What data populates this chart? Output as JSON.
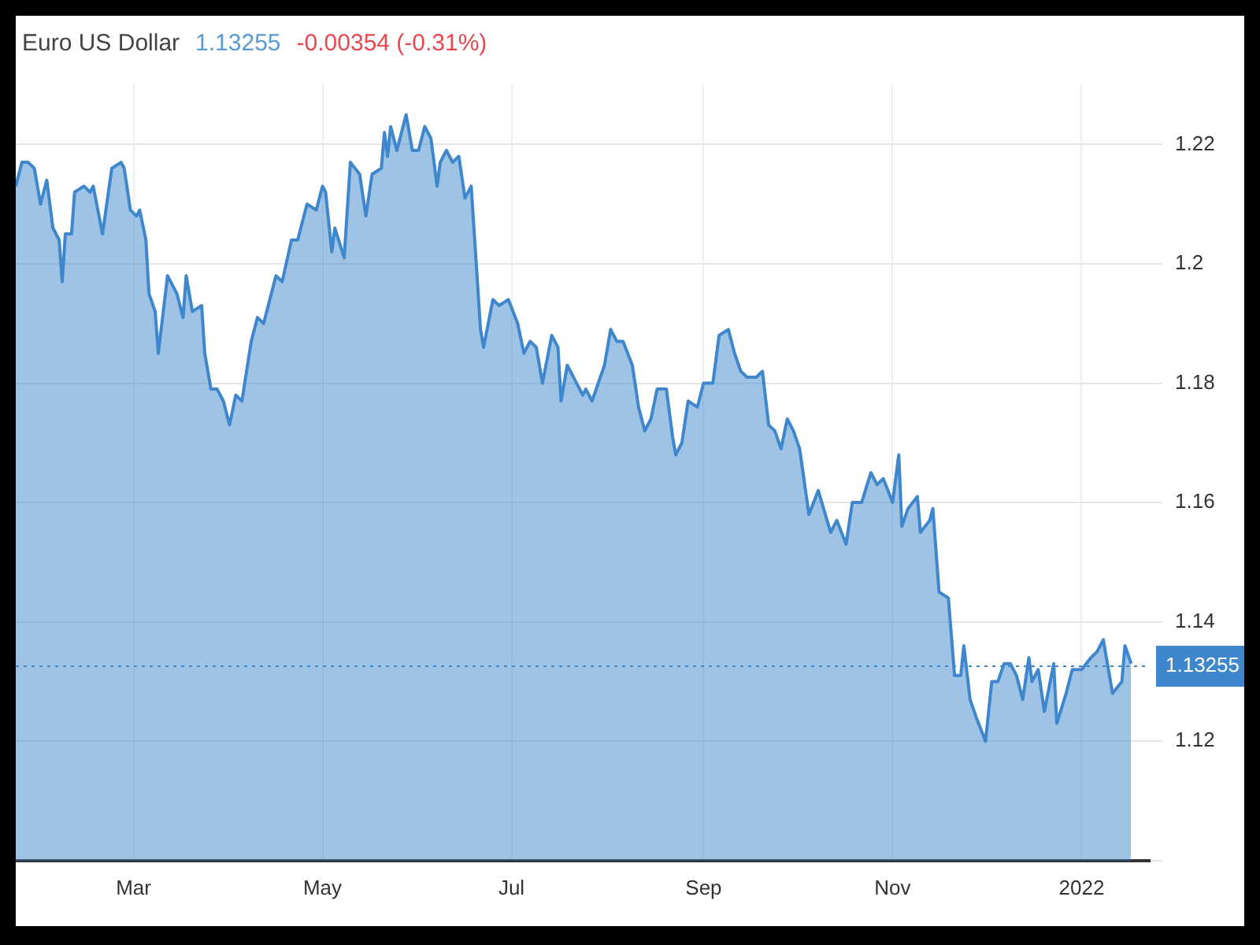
{
  "chart_data": {
    "type": "area",
    "title": "Euro US Dollar",
    "annotations": [
      "1.13255",
      "-0.00354 (-0.31%)"
    ],
    "x": [
      "2021-01-22",
      "2021-01-24",
      "2021-01-26",
      "2021-01-28",
      "2021-01-30",
      "2021-02-01",
      "2021-02-03",
      "2021-02-05",
      "2021-02-06",
      "2021-02-07",
      "2021-02-09",
      "2021-02-10",
      "2021-02-13",
      "2021-02-15",
      "2021-02-16",
      "2021-02-19",
      "2021-02-22",
      "2021-02-25",
      "2021-02-26",
      "2021-02-28",
      "2021-03-02",
      "2021-03-03",
      "2021-03-05",
      "2021-03-06",
      "2021-03-08",
      "2021-03-09",
      "2021-03-12",
      "2021-03-15",
      "2021-03-17",
      "2021-03-18",
      "2021-03-20",
      "2021-03-23",
      "2021-03-24",
      "2021-03-26",
      "2021-03-28",
      "2021-03-30",
      "2021-04-01",
      "2021-04-03",
      "2021-04-05",
      "2021-04-08",
      "2021-04-10",
      "2021-04-12",
      "2021-04-16",
      "2021-04-18",
      "2021-04-21",
      "2021-04-23",
      "2021-04-26",
      "2021-04-29",
      "2021-05-01",
      "2021-05-02",
      "2021-05-04",
      "2021-05-05",
      "2021-05-08",
      "2021-05-10",
      "2021-05-13",
      "2021-05-15",
      "2021-05-17",
      "2021-05-20",
      "2021-05-21",
      "2021-05-22",
      "2021-05-23",
      "2021-05-25",
      "2021-05-28",
      "2021-05-30",
      "2021-06-01",
      "2021-06-03",
      "2021-06-05",
      "2021-06-07",
      "2021-06-08",
      "2021-06-10",
      "2021-06-12",
      "2021-06-14",
      "2021-06-16",
      "2021-06-18",
      "2021-06-21",
      "2021-06-22",
      "2021-06-25",
      "2021-06-27",
      "2021-06-30",
      "2021-07-03",
      "2021-07-05",
      "2021-07-07",
      "2021-07-09",
      "2021-07-11",
      "2021-07-14",
      "2021-07-16",
      "2021-07-17",
      "2021-07-19",
      "2021-07-21",
      "2021-07-24",
      "2021-07-25",
      "2021-07-27",
      "2021-07-31",
      "2021-08-02",
      "2021-08-04",
      "2021-08-06",
      "2021-08-09",
      "2021-08-11",
      "2021-08-13",
      "2021-08-15",
      "2021-08-17",
      "2021-08-20",
      "2021-08-22",
      "2021-08-23",
      "2021-08-25",
      "2021-08-27",
      "2021-08-30",
      "2021-09-01",
      "2021-09-04",
      "2021-09-06",
      "2021-09-09",
      "2021-09-11",
      "2021-09-13",
      "2021-09-15",
      "2021-09-18",
      "2021-09-20",
      "2021-09-22",
      "2021-09-24",
      "2021-09-26",
      "2021-09-28",
      "2021-09-30",
      "2021-10-02",
      "2021-10-05",
      "2021-10-08",
      "2021-10-12",
      "2021-10-14",
      "2021-10-17",
      "2021-10-19",
      "2021-10-22",
      "2021-10-25",
      "2021-10-27",
      "2021-10-29",
      "2021-11-01",
      "2021-11-03",
      "2021-11-04",
      "2021-11-06",
      "2021-11-09",
      "2021-11-10",
      "2021-11-13",
      "2021-11-14",
      "2021-11-16",
      "2021-11-19",
      "2021-11-21",
      "2021-11-23",
      "2021-11-24",
      "2021-11-26",
      "2021-11-28",
      "2021-12-01",
      "2021-12-03",
      "2021-12-05",
      "2021-12-07",
      "2021-12-09",
      "2021-12-11",
      "2021-12-13",
      "2021-12-15",
      "2021-12-16",
      "2021-12-18",
      "2021-12-20",
      "2021-12-23",
      "2021-12-24",
      "2021-12-27",
      "2021-12-29",
      "2022-01-01",
      "2022-01-04",
      "2022-01-06",
      "2022-01-08",
      "2022-01-09",
      "2022-01-11",
      "2022-01-14",
      "2022-01-15",
      "2022-01-17"
    ],
    "series": [
      {
        "color": "#3f87cc",
        "values": [
          1.213,
          1.217,
          1.217,
          1.216,
          1.21,
          1.214,
          1.206,
          1.204,
          1.197,
          1.205,
          1.205,
          1.212,
          1.213,
          1.212,
          1.213,
          1.205,
          1.216,
          1.217,
          1.216,
          1.209,
          1.208,
          1.209,
          1.204,
          1.195,
          1.192,
          1.185,
          1.198,
          1.195,
          1.191,
          1.198,
          1.192,
          1.193,
          1.185,
          1.179,
          1.179,
          1.177,
          1.173,
          1.178,
          1.177,
          1.187,
          1.191,
          1.19,
          1.198,
          1.197,
          1.204,
          1.204,
          1.21,
          1.209,
          1.213,
          1.212,
          1.202,
          1.206,
          1.201,
          1.217,
          1.215,
          1.208,
          1.215,
          1.216,
          1.222,
          1.218,
          1.223,
          1.219,
          1.225,
          1.219,
          1.219,
          1.223,
          1.221,
          1.213,
          1.217,
          1.219,
          1.217,
          1.218,
          1.211,
          1.213,
          1.189,
          1.186,
          1.194,
          1.193,
          1.194,
          1.19,
          1.185,
          1.187,
          1.186,
          1.18,
          1.188,
          1.186,
          1.177,
          1.183,
          1.181,
          1.178,
          1.179,
          1.177,
          1.183,
          1.189,
          1.187,
          1.187,
          1.183,
          1.176,
          1.172,
          1.174,
          1.179,
          1.179,
          1.171,
          1.168,
          1.17,
          1.177,
          1.176,
          1.18,
          1.18,
          1.188,
          1.189,
          1.185,
          1.182,
          1.181,
          1.181,
          1.182,
          1.173,
          1.172,
          1.169,
          1.174,
          1.172,
          1.169,
          1.158,
          1.162,
          1.155,
          1.157,
          1.153,
          1.16,
          1.16,
          1.165,
          1.163,
          1.164,
          1.16,
          1.168,
          1.156,
          1.159,
          1.161,
          1.155,
          1.157,
          1.159,
          1.145,
          1.144,
          1.131,
          1.131,
          1.136,
          1.127,
          1.124,
          1.12,
          1.13,
          1.13,
          1.133,
          1.133,
          1.131,
          1.127,
          1.134,
          1.13,
          1.132,
          1.125,
          1.133,
          1.123,
          1.128,
          1.132,
          1.132,
          1.134,
          1.135,
          1.137,
          1.134,
          1.128,
          1.13,
          1.136,
          1.133
        ]
      }
    ],
    "xlim": [
      "2021-01-22",
      "2022-01-23"
    ],
    "xticks": [
      {
        "value": "2021-03-01",
        "label": "Mar"
      },
      {
        "value": "2021-05-01",
        "label": "May"
      },
      {
        "value": "2021-07-01",
        "label": "Jul"
      },
      {
        "value": "2021-09-01",
        "label": "Sep"
      },
      {
        "value": "2021-11-01",
        "label": "Nov"
      },
      {
        "value": "2022-01-01",
        "label": "2022"
      }
    ],
    "ylim": [
      1.1,
      1.23
    ],
    "yticks": [
      {
        "value": 1.1,
        "label": null
      },
      1.12,
      1.14,
      1.16,
      1.18,
      1.2,
      1.22
    ],
    "ref_lines": [
      {
        "axis": "y",
        "value": 1.13255,
        "label": "1.13255",
        "color": "#3f87cc",
        "line_style": "dotted"
      }
    ],
    "grid": true,
    "marker": "none"
  }
}
